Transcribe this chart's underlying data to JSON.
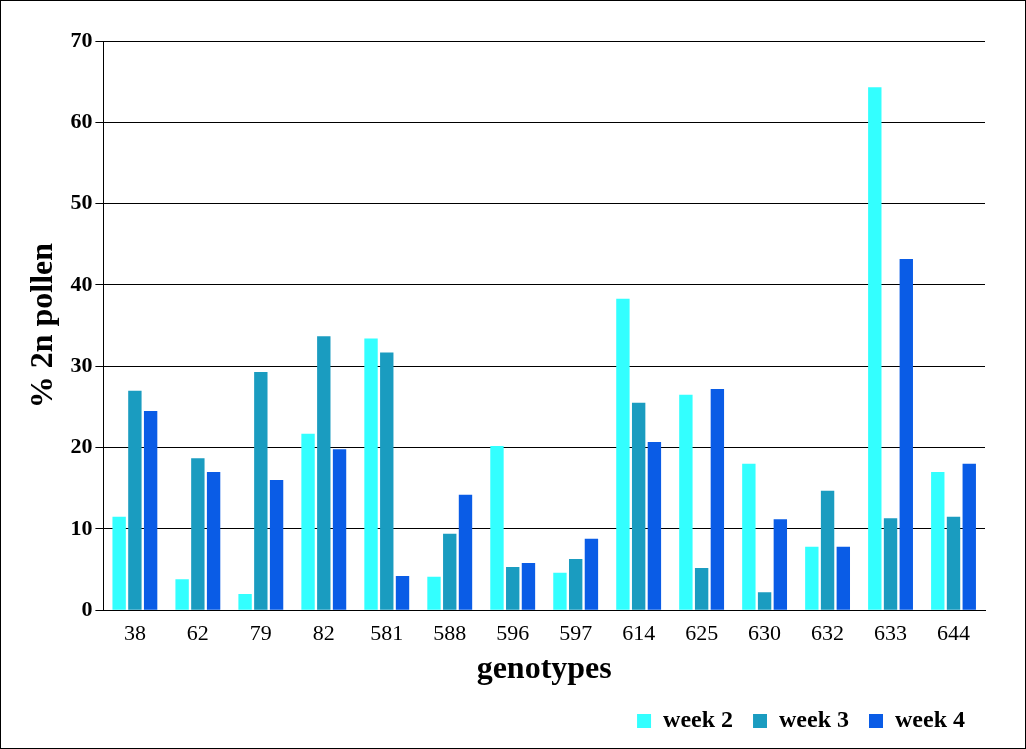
{
  "chart_data": {
    "type": "bar",
    "xlabel": "genotypes",
    "ylabel": "% 2n pollen",
    "categories": [
      "38",
      "62",
      "79",
      "82",
      "581",
      "588",
      "596",
      "597",
      "614",
      "625",
      "630",
      "632",
      "633",
      "644"
    ],
    "series": [
      {
        "name": "week 2",
        "color": "#33ffff",
        "values": [
          11.5,
          3.8,
          2,
          21.7,
          33.4,
          4.1,
          20.2,
          4.6,
          38.3,
          26.5,
          18,
          7.8,
          64.3,
          17
        ]
      },
      {
        "name": "week 3",
        "color": "#1a9cc0",
        "values": [
          27,
          18.7,
          29.3,
          33.7,
          31.7,
          9.4,
          5.3,
          6.3,
          25.5,
          5.2,
          2.2,
          14.7,
          11.3,
          11.5
        ]
      },
      {
        "name": "week 4",
        "color": "#0a5ce6",
        "values": [
          24.5,
          17,
          16,
          19.8,
          4.2,
          14.2,
          5.8,
          8.8,
          20.7,
          27.2,
          11.2,
          7.8,
          43.2,
          18
        ]
      }
    ],
    "ylim": [
      0,
      70
    ],
    "yticks": [
      0,
      10,
      20,
      30,
      40,
      50,
      60,
      70
    ],
    "grid": "y",
    "legend": "bottom right"
  }
}
